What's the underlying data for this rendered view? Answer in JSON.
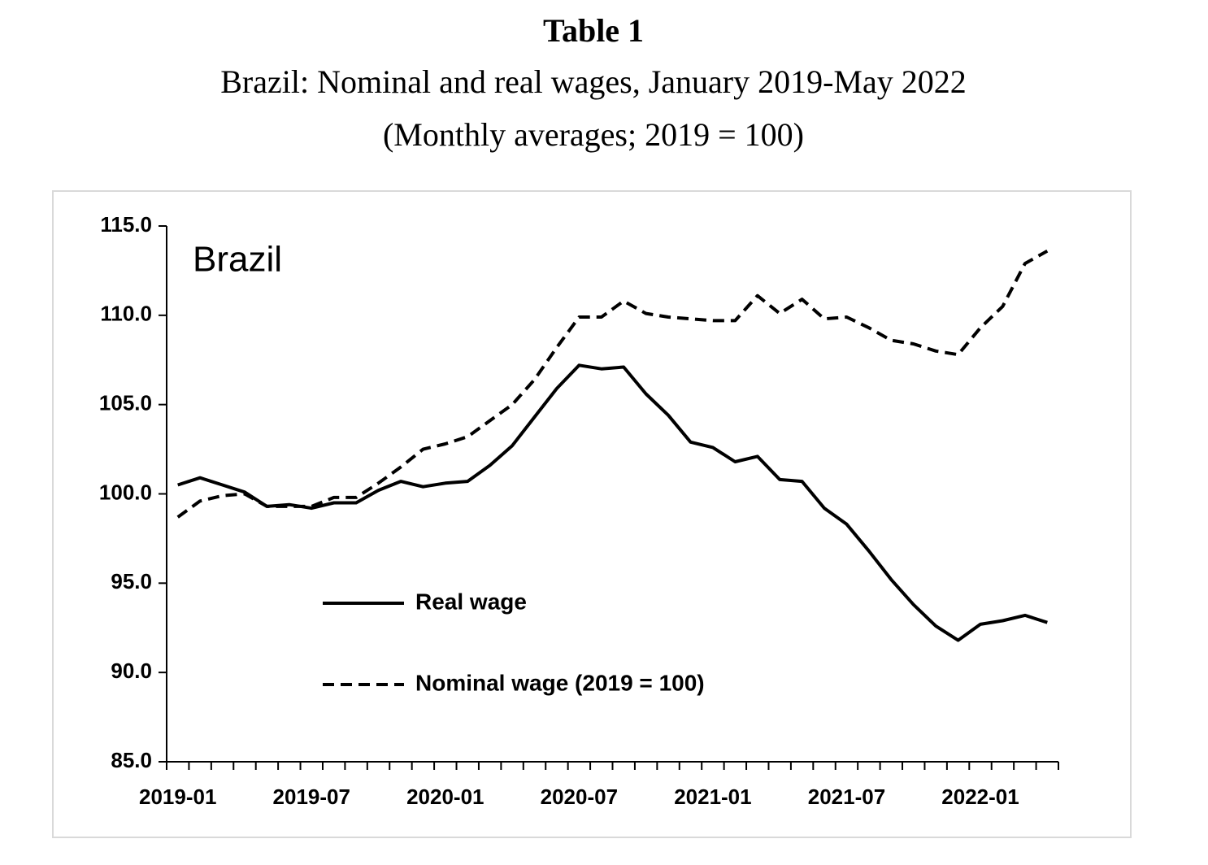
{
  "chart_data": {
    "type": "line",
    "title": "Table 1",
    "subtitle_lines": [
      "Brazil: Nominal and real wages, January 2019-May 2022",
      "(Monthly averages; 2019 = 100)"
    ],
    "annotations": [
      "Brazil"
    ],
    "categories": [
      "2019-01",
      null,
      null,
      null,
      null,
      null,
      "2019-07",
      null,
      null,
      null,
      null,
      null,
      "2020-01",
      null,
      null,
      null,
      null,
      null,
      "2020-07",
      null,
      null,
      null,
      null,
      null,
      "2021-01",
      null,
      null,
      null,
      null,
      null,
      "2021-07",
      null,
      null,
      null,
      null,
      null,
      "2022-01",
      null,
      null,
      null
    ],
    "series": [
      {
        "name": "Real wage",
        "color": "#000000",
        "line_style": "solid",
        "values": [
          100.5,
          100.9,
          100.5,
          100.1,
          99.3,
          99.4,
          99.2,
          99.5,
          99.5,
          100.2,
          100.7,
          100.4,
          100.6,
          100.7,
          101.6,
          102.7,
          104.3,
          105.9,
          107.2,
          107.0,
          107.1,
          105.6,
          104.4,
          102.9,
          102.6,
          101.8,
          102.1,
          100.8,
          100.7,
          99.2,
          98.3,
          96.8,
          95.2,
          93.8,
          92.6,
          91.8,
          92.7,
          92.9,
          93.2,
          92.8
        ]
      },
      {
        "name": "Nominal wage (2019 = 100)",
        "color": "#000000",
        "line_style": "dashed",
        "values": [
          98.7,
          99.6,
          99.9,
          100.0,
          99.3,
          99.3,
          99.3,
          99.8,
          99.8,
          100.6,
          101.5,
          102.5,
          102.8,
          103.2,
          104.1,
          105.0,
          106.4,
          108.2,
          109.9,
          109.9,
          110.8,
          110.1,
          109.9,
          109.8,
          109.7,
          109.7,
          111.1,
          110.1,
          110.9,
          109.8,
          109.9,
          109.3,
          108.6,
          108.4,
          108.0,
          107.8,
          109.3,
          110.5,
          112.9,
          113.6
        ]
      }
    ],
    "ylim": [
      85,
      115
    ],
    "yticks": [
      {
        "value": 85,
        "label": "85.0"
      },
      {
        "value": 90,
        "label": "90.0"
      },
      {
        "value": 95,
        "label": "95.0"
      },
      {
        "value": 100,
        "label": "100.0"
      },
      {
        "value": 105,
        "label": "105.0"
      },
      {
        "value": 110,
        "label": "110.0"
      },
      {
        "value": 115,
        "label": "115.0"
      }
    ],
    "grid": false
  }
}
